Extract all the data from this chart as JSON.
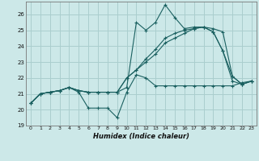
{
  "xlabel": "Humidex (Indice chaleur)",
  "xlim": [
    -0.5,
    23.5
  ],
  "ylim": [
    19.0,
    26.8
  ],
  "yticks": [
    19,
    20,
    21,
    22,
    23,
    24,
    25,
    26
  ],
  "xticks": [
    0,
    1,
    2,
    3,
    4,
    5,
    6,
    7,
    8,
    9,
    10,
    11,
    12,
    13,
    14,
    15,
    16,
    17,
    18,
    19,
    20,
    21,
    22,
    23
  ],
  "bg_color": "#cce8e8",
  "grid_color": "#aacece",
  "line_color": "#1a6060",
  "series": [
    [
      20.4,
      21.0,
      21.1,
      21.2,
      21.4,
      21.1,
      20.1,
      20.1,
      20.1,
      19.5,
      21.1,
      22.2,
      22.0,
      21.5,
      21.5,
      21.5,
      21.5,
      21.5,
      21.5,
      21.5,
      21.5,
      21.5,
      21.7,
      21.8
    ],
    [
      20.4,
      21.0,
      21.1,
      21.2,
      21.4,
      21.2,
      21.1,
      21.1,
      21.1,
      21.1,
      21.4,
      25.5,
      25.0,
      25.5,
      26.6,
      25.8,
      25.1,
      25.2,
      25.2,
      24.9,
      23.7,
      22.1,
      21.6,
      21.8
    ],
    [
      20.4,
      21.0,
      21.1,
      21.2,
      21.4,
      21.2,
      21.1,
      21.1,
      21.1,
      21.1,
      22.0,
      22.5,
      23.2,
      23.8,
      24.5,
      24.8,
      25.0,
      25.1,
      25.2,
      24.9,
      23.7,
      21.8,
      21.6,
      21.8
    ],
    [
      20.4,
      21.0,
      21.1,
      21.2,
      21.4,
      21.2,
      21.1,
      21.1,
      21.1,
      21.1,
      22.0,
      22.5,
      23.0,
      23.5,
      24.2,
      24.5,
      24.8,
      25.1,
      25.2,
      25.1,
      24.9,
      22.1,
      21.6,
      21.8
    ]
  ]
}
